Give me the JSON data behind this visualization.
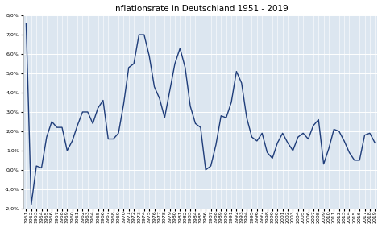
{
  "title": "Inflationsrate in Deutschland 1951 - 2019",
  "years": [
    1951,
    1952,
    1953,
    1954,
    1955,
    1956,
    1957,
    1958,
    1959,
    1960,
    1961,
    1962,
    1963,
    1964,
    1965,
    1966,
    1967,
    1968,
    1969,
    1970,
    1971,
    1972,
    1973,
    1974,
    1975,
    1976,
    1977,
    1978,
    1979,
    1980,
    1981,
    1982,
    1983,
    1984,
    1985,
    1986,
    1987,
    1988,
    1989,
    1990,
    1991,
    1992,
    1993,
    1994,
    1995,
    1996,
    1997,
    1998,
    1999,
    2000,
    2001,
    2002,
    2003,
    2004,
    2005,
    2006,
    2007,
    2008,
    2009,
    2010,
    2011,
    2012,
    2013,
    2014,
    2015,
    2016,
    2017,
    2018,
    2019
  ],
  "values": [
    7.6,
    -1.8,
    0.2,
    0.1,
    1.7,
    2.5,
    2.2,
    2.2,
    1.0,
    1.5,
    2.3,
    3.0,
    3.0,
    2.4,
    3.2,
    3.6,
    1.6,
    1.6,
    1.9,
    3.4,
    5.3,
    5.5,
    7.0,
    7.0,
    5.9,
    4.3,
    3.7,
    2.7,
    4.1,
    5.5,
    6.3,
    5.3,
    3.3,
    2.4,
    2.2,
    0.0,
    0.2,
    1.3,
    2.8,
    2.7,
    3.5,
    5.1,
    4.5,
    2.7,
    1.7,
    1.5,
    1.9,
    0.9,
    0.6,
    1.4,
    1.9,
    1.4,
    1.0,
    1.7,
    1.9,
    1.6,
    2.3,
    2.6,
    0.3,
    1.1,
    2.1,
    2.0,
    1.5,
    0.9,
    0.5,
    0.5,
    1.8,
    1.9,
    1.4
  ],
  "line_color": "#1f3d7a",
  "line_width": 1.0,
  "background_color": "#ffffff",
  "plot_bg_color": "#dce6f0",
  "ylim": [
    -2.0,
    8.0
  ],
  "yticks": [
    -2.0,
    -1.0,
    0.0,
    1.0,
    2.0,
    3.0,
    4.0,
    5.0,
    6.0,
    7.0,
    8.0
  ],
  "title_fontsize": 7.5,
  "tick_fontsize": 4.5,
  "grid_color": "#ffffff",
  "xlabel_rotation": 90
}
